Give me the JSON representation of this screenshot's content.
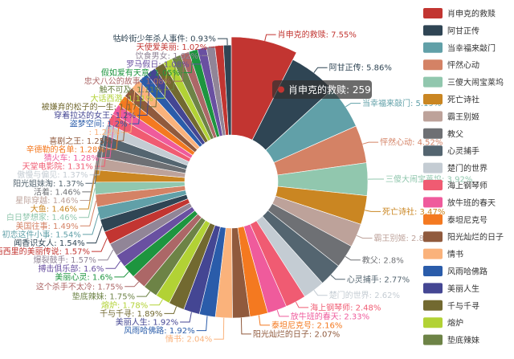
{
  "chart_data": {
    "type": "pie",
    "style": "donut",
    "label_format": "{name}: {percent}%",
    "legend_placement": "right",
    "slices": [
      {
        "name": "肖申克的救赎",
        "percent": 7.55,
        "color": "#c23531"
      },
      {
        "name": "阿甘正传",
        "percent": 5.86,
        "color": "#2f4554"
      },
      {
        "name": "当幸福来敲门",
        "percent": 5.19,
        "color": "#61a0a8"
      },
      {
        "name": "怦然心动",
        "percent": 4.52,
        "color": "#d48265"
      },
      {
        "name": "三傻大闹宝莱坞",
        "percent": 3.92,
        "color": "#91c7ae"
      },
      {
        "name": "死亡诗社",
        "percent": 3.47,
        "color": "#ca8622"
      },
      {
        "name": "霸王别姬",
        "percent": 2.83,
        "color": "#bda29a"
      },
      {
        "name": "教父",
        "percent": 2.8,
        "color": "#6e7074"
      },
      {
        "name": "心灵捕手",
        "percent": 2.77,
        "color": "#546570"
      },
      {
        "name": "楚门的世界",
        "percent": 2.62,
        "color": "#c4ccd3"
      },
      {
        "name": "海上钢琴师",
        "percent": 2.48,
        "color": "#f05b72"
      },
      {
        "name": "放牛班的春天",
        "percent": 2.33,
        "color": "#ef5b9c"
      },
      {
        "name": "泰坦尼克号",
        "percent": 2.16,
        "color": "#f47920"
      },
      {
        "name": "阳光灿烂的日子",
        "percent": 2.07,
        "color": "#905a3d"
      },
      {
        "name": "情书",
        "percent": 2.04,
        "color": "#fab27b"
      },
      {
        "name": "风雨哈佛路",
        "percent": 1.92,
        "color": "#2a5caa"
      },
      {
        "name": "美丽人生",
        "percent": 1.92,
        "color": "#444693"
      },
      {
        "name": "千与千寻",
        "percent": 1.89,
        "color": "#726930"
      },
      {
        "name": "熔炉",
        "percent": 1.78,
        "color": "#b2d235"
      },
      {
        "name": "垫底辣妹",
        "percent": 1.75,
        "color": "#6d8346"
      },
      {
        "name": "这个杀手不太冷",
        "percent": 1.75,
        "color": "#ac6767"
      },
      {
        "name": "美丽心灵",
        "percent": 1.6,
        "color": "#1d953f"
      },
      {
        "name": "搏击俱乐部",
        "percent": 1.6,
        "color": "#6950a1"
      },
      {
        "name": "爆裂鼓手",
        "percent": 1.57,
        "color": "#918597"
      },
      {
        "name": "西西里的美丽传说",
        "percent": 1.57,
        "color": "#c23531"
      },
      {
        "name": "闻香识女人",
        "percent": 1.54,
        "color": "#2f4554"
      },
      {
        "name": "初恋这件小事",
        "percent": 1.54,
        "color": "#61a0a8"
      },
      {
        "name": "美国往事",
        "percent": 1.49,
        "color": "#d48265"
      },
      {
        "name": "白日梦想家",
        "percent": 1.46,
        "color": "#91c7ae"
      },
      {
        "name": "大鱼",
        "percent": 1.46,
        "color": "#ca8622"
      },
      {
        "name": "星际穿越",
        "percent": 1.46,
        "color": "#bda29a"
      },
      {
        "name": "活着",
        "percent": 1.46,
        "color": "#6e7074"
      },
      {
        "name": "阳光姐妹淘",
        "percent": 1.37,
        "color": "#546570"
      },
      {
        "name": "傲慢与偏见",
        "percent": 1.37,
        "color": "#c4ccd3"
      },
      {
        "name": "天堂电影院",
        "percent": 1.31,
        "color": "#f05b72"
      },
      {
        "name": "猜火车",
        "percent": 1.28,
        "color": "#ef5b9c"
      },
      {
        "name": "辛德勒的名单",
        "percent": 1.28,
        "color": "#f47920"
      },
      {
        "name": "喜剧之王",
        "percent": 1.25,
        "color": "#905a3d"
      },
      {
        "name": "",
        "percent": 1.22,
        "color": "#fab27b"
      },
      {
        "name": "盗梦空间",
        "percent": 1.2,
        "color": "#2a5caa"
      },
      {
        "name": "穿着拉达的女王",
        "percent": 1.2,
        "color": "#444693"
      },
      {
        "name": "被嫌弃的松子的一生",
        "percent": 1.17,
        "color": "#726930"
      },
      {
        "name": "大话西游",
        "percent": 1.11,
        "color": "#b2d235"
      },
      {
        "name": "触不可及",
        "percent": 1.11,
        "color": "#6d8346"
      },
      {
        "name": "忠犬八公的故事",
        "percent": 1.08,
        "color": "#ac6767"
      },
      {
        "name": "假如爱有天意",
        "percent": 1.05,
        "color": "#1d953f"
      },
      {
        "name": "罗马假日",
        "percent": 1.08,
        "color": "#6950a1"
      },
      {
        "name": "饮食男女",
        "percent": 1.02,
        "color": "#918597"
      },
      {
        "name": "天使爱美丽",
        "percent": 1.02,
        "color": "#c23531"
      },
      {
        "name": "牯岭街少年杀人事件",
        "percent": 0.93,
        "color": "#2f4554"
      }
    ],
    "legend": [
      {
        "name": "肖申克的救赎",
        "color": "#c23531"
      },
      {
        "name": "阿甘正传",
        "color": "#2f4554"
      },
      {
        "name": "当幸福来敲门",
        "color": "#61a0a8"
      },
      {
        "name": "怦然心动",
        "color": "#d48265"
      },
      {
        "name": "三傻大闹宝莱坞",
        "color": "#91c7ae"
      },
      {
        "name": "死亡诗社",
        "color": "#ca8622"
      },
      {
        "name": "霸王别姬",
        "color": "#bda29a"
      },
      {
        "name": "教父",
        "color": "#6e7074"
      },
      {
        "name": "心灵捕手",
        "color": "#546570"
      },
      {
        "name": "楚门的世界",
        "color": "#c4ccd3"
      },
      {
        "name": "海上钢琴师",
        "color": "#f05b72"
      },
      {
        "name": "放牛班的春天",
        "color": "#ef5b9c"
      },
      {
        "name": "泰坦尼克号",
        "color": "#f47920"
      },
      {
        "name": "阳光灿烂的日子",
        "color": "#905a3d"
      },
      {
        "name": "情书",
        "color": "#fab27b"
      },
      {
        "name": "风雨哈佛路",
        "color": "#2a5caa"
      },
      {
        "name": "美丽人生",
        "color": "#444693"
      },
      {
        "name": "千与千寻",
        "color": "#726930"
      },
      {
        "name": "熔炉",
        "color": "#b2d235"
      },
      {
        "name": "垫底辣妹",
        "color": "#6d8346"
      }
    ],
    "tooltip": {
      "name": "肖申克的救赎",
      "value": 259,
      "color": "#c23531"
    }
  }
}
